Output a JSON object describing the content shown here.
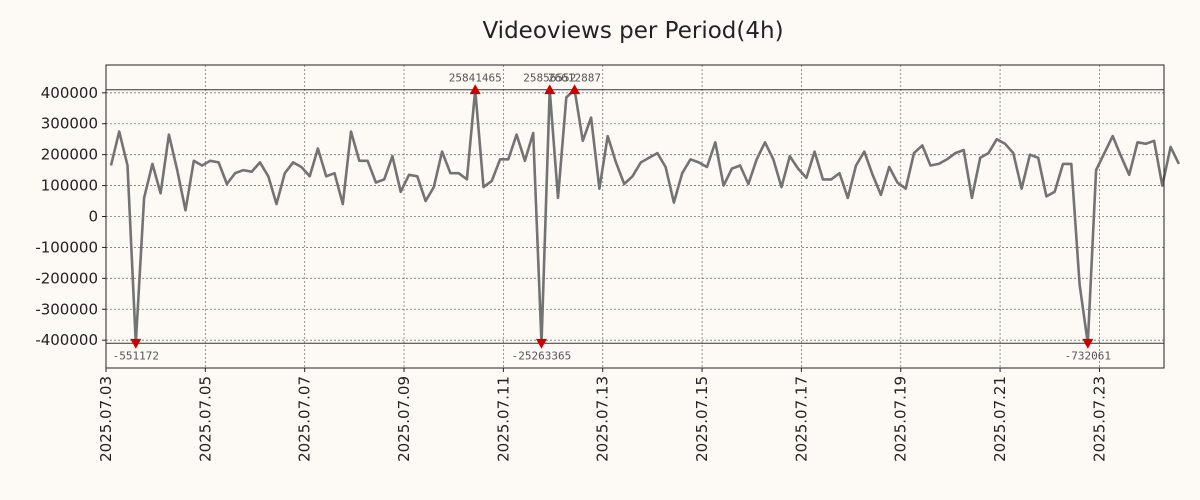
{
  "chart_data": {
    "type": "line",
    "title": "Videoviews per Period(4h)",
    "xlabel": "",
    "ylabel": "",
    "ylim": [
      -490000,
      490000
    ],
    "yticks": [
      400000,
      300000,
      200000,
      100000,
      0,
      -100000,
      -200000,
      -300000,
      -400000
    ],
    "ytick_labels": [
      "400000",
      "300000",
      "200000",
      "100000",
      "0",
      "-100000",
      "-200000",
      "-300000",
      "-400000"
    ],
    "x_start": "2025.07.03",
    "x_step_hours": 4,
    "xlim_days": [
      0,
      21.3
    ],
    "xticks": [
      {
        "day": 0,
        "label": "2025.07.03"
      },
      {
        "day": 2,
        "label": "2025.07.05"
      },
      {
        "day": 4,
        "label": "2025.07.07"
      },
      {
        "day": 6,
        "label": "2025.07.09"
      },
      {
        "day": 8,
        "label": "2025.07.11"
      },
      {
        "day": 10,
        "label": "2025.07.13"
      },
      {
        "day": 12,
        "label": "2025.07.15"
      },
      {
        "day": 14,
        "label": "2025.07.17"
      },
      {
        "day": 16,
        "label": "2025.07.19"
      },
      {
        "day": 18,
        "label": "2025.07.21"
      },
      {
        "day": 20,
        "label": "2025.07.23"
      }
    ],
    "clip_bounds": [
      410000,
      -410000
    ],
    "series": [
      {
        "name": "Videoviews",
        "color": "#737373",
        "values": [
          165000,
          275000,
          165000,
          -410000,
          60000,
          170000,
          75000,
          265000,
          150000,
          20000,
          180000,
          165000,
          180000,
          175000,
          105000,
          140000,
          150000,
          145000,
          175000,
          130000,
          40000,
          140000,
          175000,
          160000,
          130000,
          220000,
          130000,
          140000,
          40000,
          275000,
          180000,
          180000,
          110000,
          120000,
          195000,
          80000,
          135000,
          130000,
          50000,
          95000,
          210000,
          140000,
          140000,
          120000,
          410000,
          95000,
          115000,
          185000,
          185000,
          265000,
          180000,
          270000,
          -410000,
          410000,
          60000,
          385000,
          410000,
          245000,
          320000,
          90000,
          260000,
          175000,
          105000,
          130000,
          175000,
          190000,
          205000,
          160000,
          45000,
          140000,
          185000,
          175000,
          160000,
          240000,
          100000,
          155000,
          165000,
          105000,
          185000,
          240000,
          185000,
          95000,
          195000,
          155000,
          125000,
          210000,
          120000,
          120000,
          140000,
          60000,
          165000,
          210000,
          135000,
          70000,
          160000,
          110000,
          90000,
          205000,
          230000,
          165000,
          170000,
          185000,
          205000,
          215000,
          60000,
          190000,
          205000,
          250000,
          235000,
          205000,
          90000,
          200000,
          190000,
          65000,
          80000,
          170000,
          170000,
          -220000,
          -410000,
          150000,
          205000,
          260000,
          195000,
          135000,
          240000,
          235000,
          245000,
          100000,
          225000,
          170000
        ]
      }
    ],
    "annotations": [
      {
        "index": 3,
        "label": "-551172",
        "side": "low"
      },
      {
        "index": 44,
        "label": "25841465",
        "side": "high"
      },
      {
        "index": 52,
        "label": "-25263365",
        "side": "low"
      },
      {
        "index": 53,
        "label": "25856552",
        "side": "high"
      },
      {
        "index": 56,
        "label": "26612887",
        "side": "high"
      },
      {
        "index": 118,
        "label": "-732061",
        "side": "low"
      }
    ],
    "marker_color": "#cc0000",
    "grid": true
  }
}
